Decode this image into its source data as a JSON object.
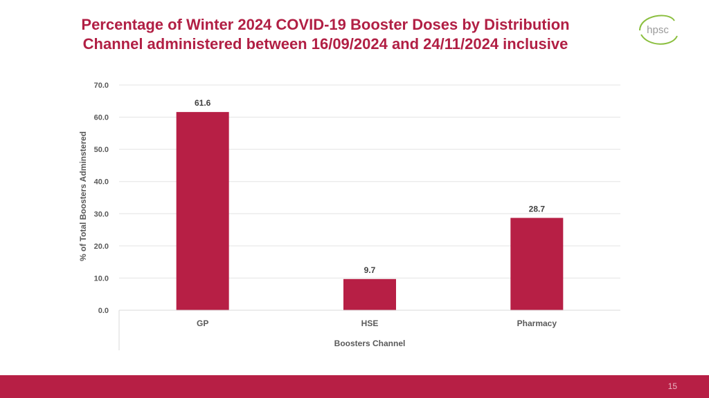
{
  "slide": {
    "title_line1": "Percentage of Winter 2024 COVID-19 Booster Doses by Distribution",
    "title_line2": "Channel administered between 16/09/2024 and 24/11/2024 inclusive",
    "logo_text": "hpsc",
    "page_number": "15"
  },
  "colors": {
    "accent": "#b11f44",
    "bar": "#b71f45",
    "band": "#b71f45",
    "logo_green": "#8bbf3f",
    "logo_text": "#9a9a9a"
  },
  "chart_data": {
    "type": "bar",
    "categories": [
      "GP",
      "HSE",
      "Pharmacy"
    ],
    "values": [
      61.6,
      9.7,
      28.7
    ],
    "data_labels": [
      "61.6",
      "9.7",
      "28.7"
    ],
    "xlabel": "Boosters  Channel",
    "ylabel": "% of Total Boosters Adminstered",
    "ylim": [
      0,
      70
    ],
    "yticks": [
      "0.0",
      "10.0",
      "20.0",
      "30.0",
      "40.0",
      "50.0",
      "60.0",
      "70.0"
    ],
    "grid": true,
    "legend": "none"
  }
}
